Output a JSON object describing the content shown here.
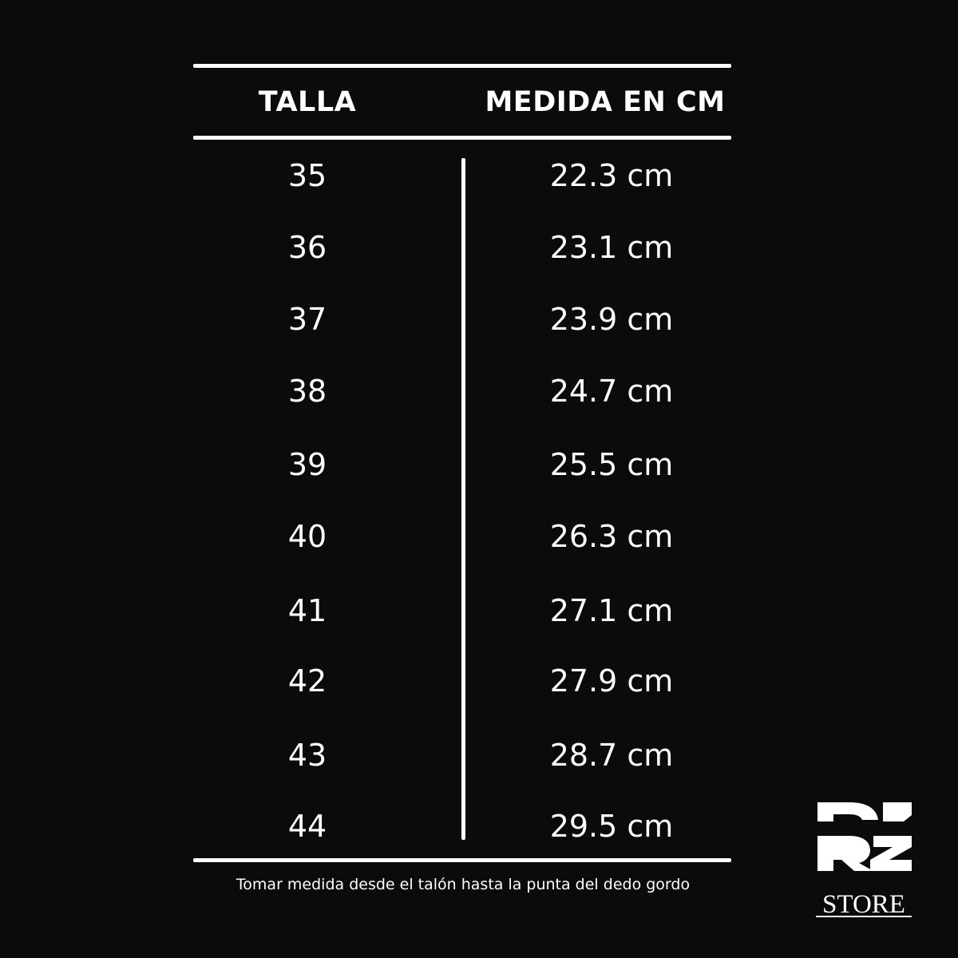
{
  "table": {
    "headers": [
      "TALLA",
      "MEDIDA EN CM"
    ],
    "rows": [
      {
        "size": "35",
        "measure": "22.3 cm"
      },
      {
        "size": "36",
        "measure": "23.1 cm"
      },
      {
        "size": "37",
        "measure": "23.9 cm"
      },
      {
        "size": "38",
        "measure": "24.7 cm"
      },
      {
        "size": "39",
        "measure": "25.5 cm"
      },
      {
        "size": "40",
        "measure": "26.3 cm"
      },
      {
        "size": "41",
        "measure": "27.1 cm"
      },
      {
        "size": "42",
        "measure": "27.9 cm"
      },
      {
        "size": "43",
        "measure": "28.7 cm"
      },
      {
        "size": "44",
        "measure": "29.5 cm"
      }
    ]
  },
  "footer_note": "Tomar medida desde el talón hasta la punta del dedo gordo",
  "logo": {
    "text": "RZ STORE"
  },
  "colors": {
    "background": "#0b0b0b",
    "foreground": "#ffffff"
  }
}
